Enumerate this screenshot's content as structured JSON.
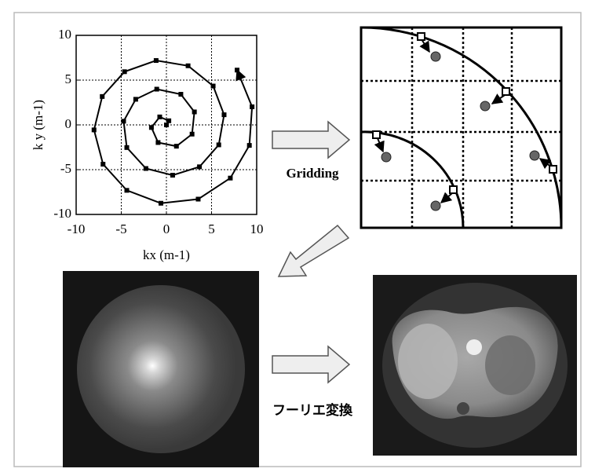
{
  "chart_data": {
    "type": "line",
    "xlabel": "kx (m-1)",
    "ylabel": "k y (m-1)",
    "x": [
      0,
      0.27,
      -0.74,
      -1.66,
      -0.92,
      1.11,
      2.84,
      3.1,
      1.6,
      -1.07,
      -3.4,
      -4.74,
      -4.39,
      -2.27,
      0.69,
      3.66,
      5.8,
      6.39,
      5.18,
      2.4,
      -1.14,
      -4.64,
      -7.11,
      -8.02,
      -7.02,
      -4.39,
      -0.61,
      3.52,
      7.08,
      9.19,
      9.49,
      7.83
    ],
    "values": [
      0,
      0.46,
      0.89,
      -0.29,
      -1.97,
      -2.38,
      -1.03,
      1.45,
      3.42,
      3.99,
      2.86,
      0.41,
      -2.53,
      -4.87,
      -5.62,
      -4.68,
      -2.23,
      1.13,
      4.34,
      6.6,
      7.19,
      5.94,
      3.17,
      -0.56,
      -4.39,
      -7.31,
      -8.75,
      -8.29,
      -5.94,
      -2.29,
      2.02,
      6.12
    ],
    "color": "#000000",
    "xlim": [
      -10,
      10
    ],
    "ylim": [
      -10,
      10
    ],
    "xticks": [
      -10,
      -5,
      0,
      5,
      10
    ],
    "yticks": [
      -10,
      -5,
      0,
      5,
      10
    ],
    "grid": true
  },
  "labels": {
    "gridding": "Gridding",
    "fourier": "フーリエ変換"
  }
}
